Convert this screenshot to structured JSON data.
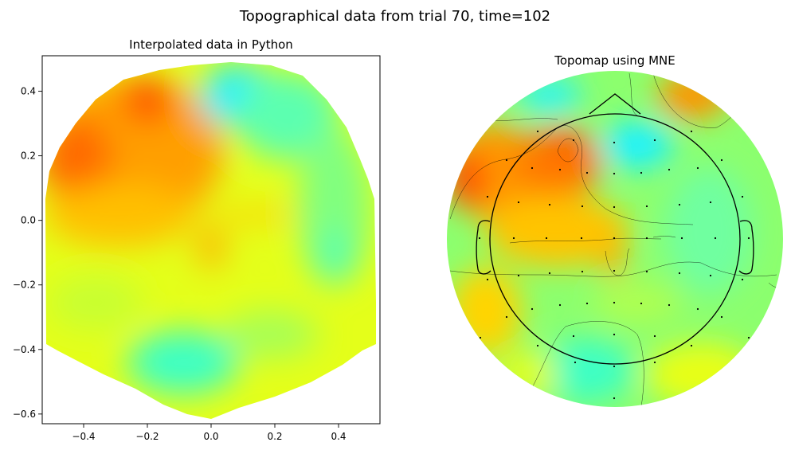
{
  "figure": {
    "title": "Topographical data from trial 70, time=102"
  },
  "chart_data": [
    {
      "type": "heatmap",
      "title": "Interpolated data in Python",
      "xlabel": "",
      "ylabel": "",
      "xlim": [
        -0.53,
        0.53
      ],
      "ylim": [
        -0.63,
        0.51
      ],
      "xticks": [
        -0.4,
        -0.2,
        0.0,
        0.2,
        0.4
      ],
      "xtick_labels": [
        "−0.4",
        "−0.2",
        "0.0",
        "0.2",
        "0.4"
      ],
      "yticks": [
        -0.6,
        -0.4,
        -0.2,
        0.0,
        0.2,
        0.4
      ],
      "ytick_labels": [
        "−0.6",
        "−0.4",
        "−0.2",
        "0.0",
        "0.2",
        "0.4"
      ],
      "colormap": "jet",
      "regions": [
        {
          "x": -0.18,
          "y": 0.37,
          "level": "high",
          "color": "#ff5a00"
        },
        {
          "x": -0.38,
          "y": 0.2,
          "level": "high",
          "color": "#ff7a00"
        },
        {
          "x": -0.25,
          "y": 0.05,
          "level": "medium-high",
          "color": "#ffb300"
        },
        {
          "x": 0.08,
          "y": 0.37,
          "level": "low",
          "color": "#1ff5ff"
        },
        {
          "x": 0.0,
          "y": -0.1,
          "level": "medium-high",
          "color": "#ffc400"
        },
        {
          "x": -0.05,
          "y": -0.45,
          "level": "low",
          "color": "#3fffc0"
        },
        {
          "x": 0.38,
          "y": -0.1,
          "level": "medium-low",
          "color": "#66ffa0"
        }
      ]
    },
    {
      "type": "heatmap",
      "title": "Topomap using MNE",
      "colormap": "jet",
      "grid": false,
      "regions": [
        {
          "position": "left-upper",
          "level": "high",
          "color": "#ff5a00"
        },
        {
          "position": "upper-left-center",
          "level": "high",
          "color": "#ff6e00"
        },
        {
          "position": "upper-right-edge",
          "level": "high",
          "color": "#ff8a00"
        },
        {
          "position": "upper-center",
          "level": "low",
          "color": "#1ff5ff"
        },
        {
          "position": "center",
          "level": "medium-high",
          "color": "#ffc400"
        },
        {
          "position": "bottom-center",
          "level": "low",
          "color": "#3fffc0"
        },
        {
          "position": "bottom-right",
          "level": "medium",
          "color": "#e8ff14"
        }
      ]
    }
  ]
}
